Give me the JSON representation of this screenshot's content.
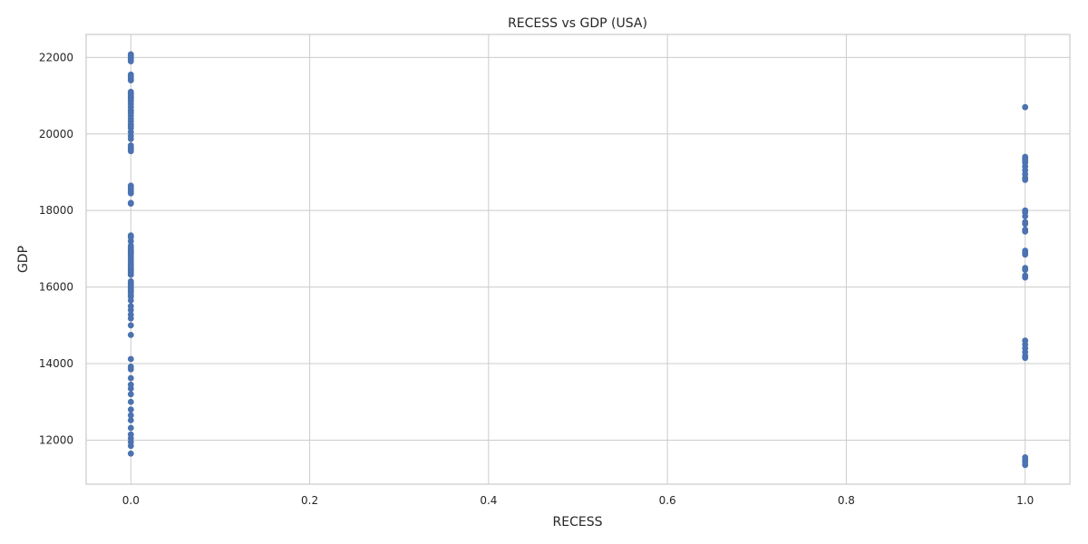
{
  "chart_data": {
    "type": "scatter",
    "title": "RECESS vs GDP (USA)",
    "xlabel": "RECESS",
    "ylabel": "GDP",
    "xlim": [
      -0.05,
      1.05
    ],
    "ylim": [
      10850,
      22600
    ],
    "xticks": [
      "0.0",
      "0.2",
      "0.4",
      "0.6",
      "0.8",
      "1.0"
    ],
    "xtick_values": [
      0.0,
      0.2,
      0.4,
      0.6,
      0.8,
      1.0
    ],
    "yticks": [
      "12000",
      "14000",
      "16000",
      "18000",
      "20000",
      "22000"
    ],
    "ytick_values": [
      12000,
      14000,
      16000,
      18000,
      20000,
      22000
    ],
    "grid": true,
    "marker_color": "#4c72b0",
    "series": [
      {
        "x": [
          0,
          0,
          0,
          0,
          0,
          0,
          0,
          0,
          0,
          0,
          0,
          0,
          0,
          0,
          0,
          0,
          0,
          0,
          0,
          0,
          0,
          0,
          0,
          0,
          0,
          0,
          0,
          0,
          0,
          0,
          0,
          0,
          0,
          0,
          0,
          0,
          0,
          0,
          0,
          0,
          0,
          0,
          0,
          0,
          0,
          0,
          0,
          0,
          0,
          0,
          0,
          0,
          0,
          0,
          0,
          0,
          0,
          0,
          0,
          0,
          0,
          0,
          0,
          0,
          0,
          0,
          0,
          0,
          0,
          0,
          0,
          0,
          0,
          0,
          0,
          0,
          0,
          0,
          0,
          0,
          0,
          0,
          0,
          0,
          0,
          0,
          0,
          0,
          0,
          0,
          0,
          0,
          0,
          0,
          0,
          0
        ],
        "y": [
          11650,
          11850,
          11950,
          12050,
          12150,
          12320,
          12520,
          12650,
          12800,
          13000,
          13200,
          13350,
          13450,
          13620,
          13850,
          13920,
          14120,
          14750,
          15000,
          15180,
          15280,
          15400,
          15500,
          15650,
          15750,
          15800,
          15870,
          15920,
          16000,
          16050,
          16100,
          16150,
          16320,
          16380,
          16420,
          16480,
          16520,
          16580,
          16640,
          16700,
          16760,
          16820,
          16870,
          16920,
          16970,
          17020,
          17080,
          17200,
          17300,
          17350,
          18180,
          18200,
          18450,
          18500,
          18550,
          18600,
          18650,
          19550,
          19600,
          19650,
          19700,
          19870,
          19950,
          20050,
          20150,
          20250,
          20330,
          20400,
          20480,
          20550,
          20620,
          20700,
          20780,
          20850,
          20900,
          20950,
          21000,
          21050,
          21100,
          21400,
          21450,
          21500,
          21550,
          21900,
          21950,
          22000,
          22050,
          22080,
          21050,
          20950,
          20600,
          20200,
          16100,
          16900,
          16450,
          15950
        ]
      },
      {
        "x": [
          1,
          1,
          1,
          1,
          1,
          1,
          1,
          1,
          1,
          1,
          1,
          1,
          1,
          1,
          1,
          1,
          1,
          1,
          1,
          1,
          1,
          1,
          1,
          1,
          1,
          1,
          1,
          1,
          1,
          1,
          1,
          1,
          1,
          1
        ],
        "y": [
          11350,
          11420,
          11480,
          11550,
          14150,
          14200,
          14300,
          14400,
          14500,
          14600,
          16250,
          16300,
          16450,
          16500,
          16850,
          16900,
          16950,
          17450,
          17500,
          17650,
          17700,
          17850,
          17950,
          18000,
          18800,
          18850,
          18950,
          19050,
          19150,
          19250,
          19300,
          19350,
          19400,
          20700
        ]
      }
    ]
  }
}
